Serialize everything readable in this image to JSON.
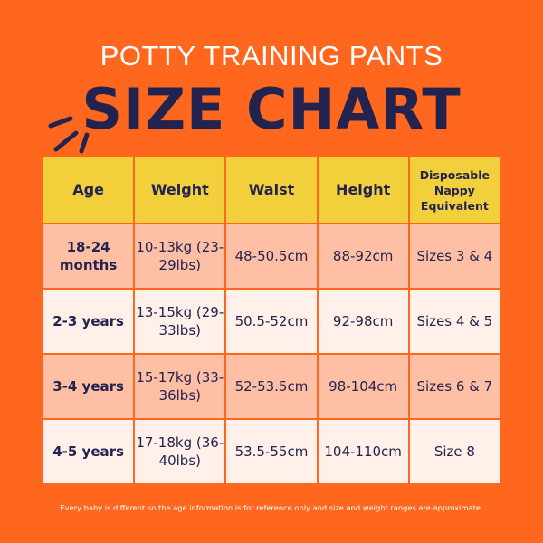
{
  "header": {
    "subtitle": "POTTY TRAINING PANTS",
    "title": "SIZE CHART"
  },
  "colors": {
    "background": "#FF671F",
    "header_row": "#F2D03B",
    "row_dark": "#FFBFA5",
    "row_light": "#FFF1E9",
    "text": "#23234F"
  },
  "table": {
    "columns": [
      "Age",
      "Weight",
      "Waist",
      "Height",
      "Disposable Nappy Equivalent"
    ],
    "rows": [
      {
        "age": "18-24 months",
        "weight": "10-13kg (23-29lbs)",
        "waist": "48-50.5cm",
        "height": "88-92cm",
        "nappy": "Sizes 3 & 4"
      },
      {
        "age": "2-3 years",
        "weight": "13-15kg (29-33lbs)",
        "waist": "50.5-52cm",
        "height": "92-98cm",
        "nappy": "Sizes 4 & 5"
      },
      {
        "age": "3-4 years",
        "weight": "15-17kg (33-36lbs)",
        "waist": "52-53.5cm",
        "height": "98-104cm",
        "nappy": "Sizes 6 & 7"
      },
      {
        "age": "4-5 years",
        "weight": "17-18kg (36-40lbs)",
        "waist": "53.5-55cm",
        "height": "104-110cm",
        "nappy": "Size 8"
      }
    ]
  },
  "footnote": "Every baby is different so the age information is for reference only and size and weight ranges are approximate."
}
